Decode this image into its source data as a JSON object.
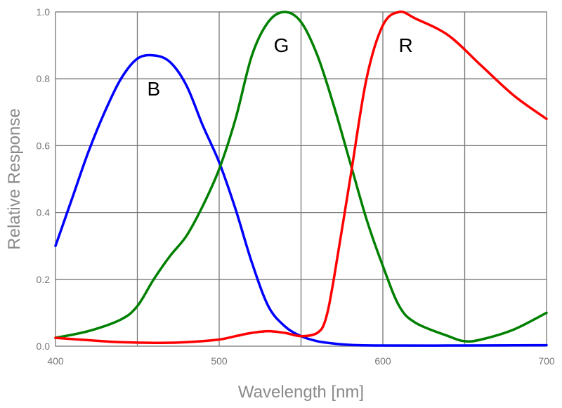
{
  "chart_data": {
    "type": "line",
    "title": "",
    "xlabel": "Wavelength [nm]",
    "ylabel": "Relative Response",
    "xlim": [
      400,
      700
    ],
    "ylim": [
      0,
      1
    ],
    "xticks": [
      400,
      500,
      600,
      700
    ],
    "xtick_labels": [
      "400",
      "500",
      "600",
      "700"
    ],
    "yticks": [
      0.0,
      0.2,
      0.4,
      0.6,
      0.8,
      1.0
    ],
    "ytick_labels": [
      "0.0",
      "0.2",
      "0.4",
      "0.6",
      "0.8",
      "1.0"
    ],
    "grid": true,
    "legend": "none",
    "series": [
      {
        "name": "B",
        "color": "#0000ff",
        "x": [
          400,
          410,
          420,
          430,
          440,
          450,
          460,
          470,
          480,
          490,
          500,
          510,
          520,
          530,
          540,
          550,
          560,
          570,
          580,
          600,
          650,
          700
        ],
        "y": [
          0.3,
          0.44,
          0.58,
          0.7,
          0.8,
          0.86,
          0.87,
          0.85,
          0.78,
          0.66,
          0.55,
          0.41,
          0.25,
          0.12,
          0.06,
          0.03,
          0.015,
          0.008,
          0.004,
          0.002,
          0.002,
          0.003
        ]
      },
      {
        "name": "G",
        "color": "#008000",
        "x": [
          400,
          420,
          440,
          450,
          460,
          470,
          480,
          490,
          500,
          510,
          520,
          530,
          540,
          550,
          560,
          570,
          580,
          590,
          600,
          610,
          620,
          640,
          650,
          660,
          680,
          700
        ],
        "y": [
          0.025,
          0.045,
          0.08,
          0.12,
          0.2,
          0.27,
          0.33,
          0.42,
          0.53,
          0.68,
          0.87,
          0.97,
          1.0,
          0.97,
          0.87,
          0.72,
          0.55,
          0.38,
          0.24,
          0.12,
          0.07,
          0.03,
          0.015,
          0.02,
          0.05,
          0.1
        ]
      },
      {
        "name": "R",
        "color": "#ff0000",
        "x": [
          400,
          420,
          440,
          460,
          480,
          500,
          510,
          520,
          530,
          540,
          550,
          560,
          565,
          570,
          580,
          590,
          600,
          610,
          620,
          640,
          660,
          680,
          700
        ],
        "y": [
          0.025,
          0.018,
          0.012,
          0.01,
          0.012,
          0.02,
          0.03,
          0.04,
          0.045,
          0.04,
          0.03,
          0.04,
          0.08,
          0.2,
          0.5,
          0.8,
          0.96,
          1.0,
          0.98,
          0.93,
          0.84,
          0.75,
          0.68
        ]
      }
    ],
    "annotations": [
      {
        "text": "B",
        "x": 460,
        "y": 0.75
      },
      {
        "text": "G",
        "x": 538,
        "y": 0.88
      },
      {
        "text": "R",
        "x": 614,
        "y": 0.88
      }
    ]
  }
}
